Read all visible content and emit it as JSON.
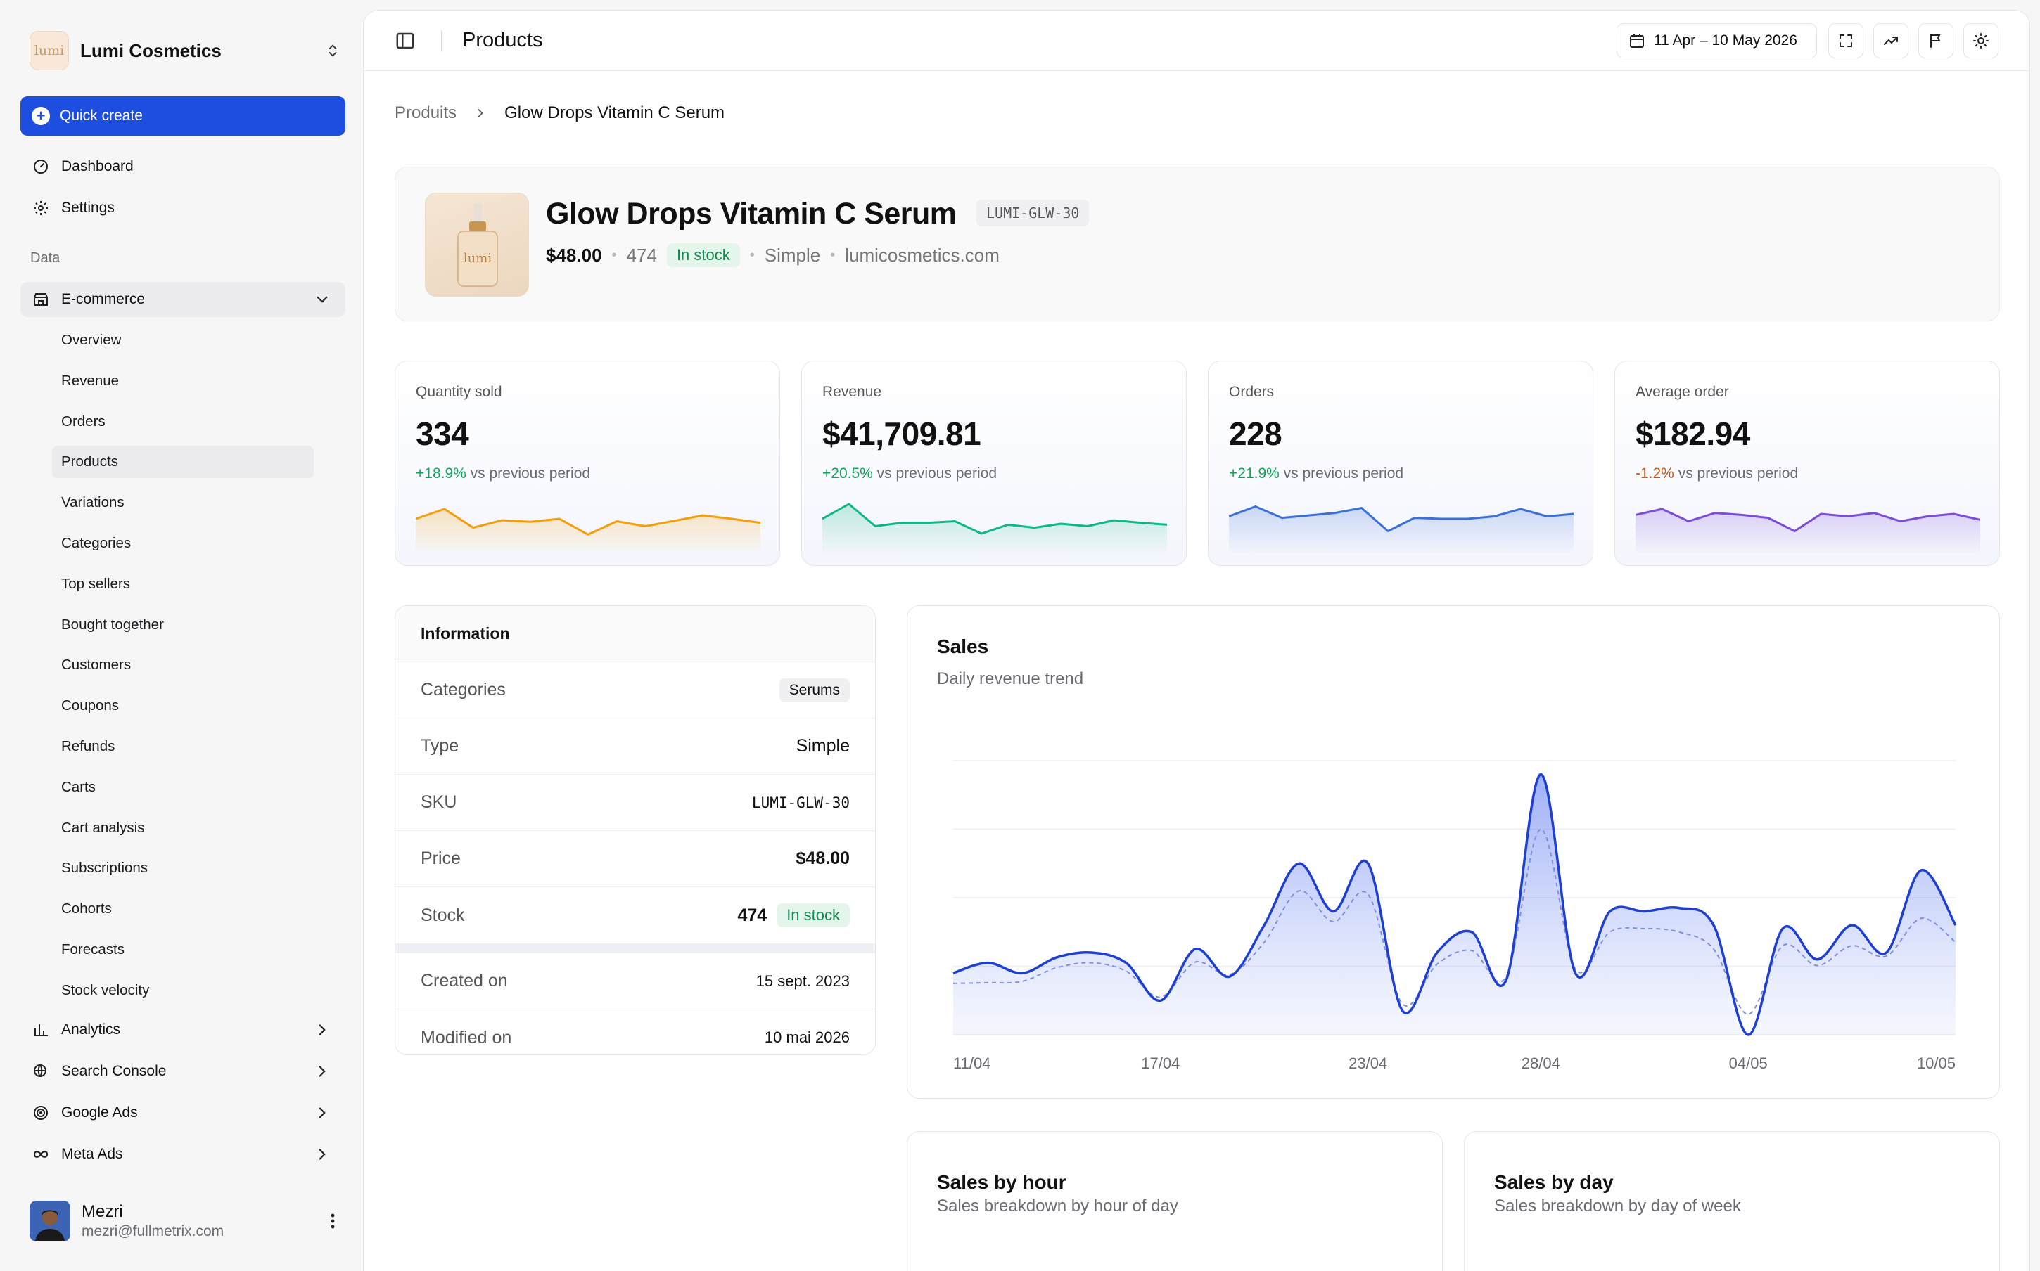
{
  "sidebar": {
    "brand_logo_text": "lumi",
    "brand_name": "Lumi Cosmetics",
    "quick_create": "Quick create",
    "top_items": [
      "Dashboard",
      "Settings"
    ],
    "section_label": "Data",
    "ecommerce_label": "E-commerce",
    "ecommerce_items": [
      "Overview",
      "Revenue",
      "Orders",
      "Products",
      "Variations",
      "Categories",
      "Top sellers",
      "Bought together",
      "Customers",
      "Coupons",
      "Refunds",
      "Carts",
      "Cart analysis",
      "Subscriptions",
      "Cohorts",
      "Forecasts",
      "Stock velocity"
    ],
    "active_item": "Products",
    "bottom_items": [
      "Analytics",
      "Search Console",
      "Google Ads",
      "Meta Ads"
    ],
    "user": {
      "name": "Mezri",
      "email": "mezri@fullmetrix.com"
    }
  },
  "topbar": {
    "title": "Products",
    "date_range": "11 Apr – 10 May 2026"
  },
  "breadcrumb": {
    "parent": "Produits",
    "current": "Glow Drops Vitamin C Serum"
  },
  "product": {
    "image_text": "lumi",
    "title": "Glow Drops Vitamin C Serum",
    "sku": "LUMI-GLW-30",
    "price": "$48.00",
    "stock": "474",
    "stock_status": "In stock",
    "type": "Simple",
    "domain": "lumicosmetics.com"
  },
  "kpis": [
    {
      "label": "Quantity sold",
      "value": "334",
      "delta": "+18.9%",
      "delta_sign": "pos",
      "suffix": "vs previous period",
      "color": "#f59e0b",
      "spark": [
        40,
        20,
        58,
        43,
        46,
        40,
        72,
        45,
        55,
        44,
        33,
        40,
        48
      ]
    },
    {
      "label": "Revenue",
      "value": "$41,709.81",
      "delta": "+20.5%",
      "delta_sign": "pos",
      "suffix": "vs previous period",
      "color": "#10b981",
      "spark": [
        40,
        10,
        55,
        48,
        48,
        45,
        70,
        52,
        58,
        50,
        55,
        43,
        48,
        52
      ]
    },
    {
      "label": "Orders",
      "value": "228",
      "delta": "+21.9%",
      "delta_sign": "pos",
      "suffix": "vs previous period",
      "color": "#3b6fd9",
      "spark": [
        35,
        15,
        38,
        33,
        28,
        18,
        65,
        38,
        40,
        40,
        35,
        20,
        35,
        30
      ]
    },
    {
      "label": "Average order",
      "value": "$182.94",
      "delta": "-1.2%",
      "delta_sign": "neg",
      "suffix": "vs previous period",
      "color": "#7c4ddb",
      "spark": [
        32,
        20,
        45,
        28,
        32,
        38,
        65,
        30,
        35,
        28,
        45,
        35,
        30,
        42
      ]
    }
  ],
  "info": {
    "title": "Information",
    "rows": [
      {
        "key": "Categories",
        "value": "Serums"
      },
      {
        "key": "Type",
        "value": "Simple"
      },
      {
        "key": "SKU",
        "value": "LUMI-GLW-30"
      },
      {
        "key": "Price",
        "value": "$48.00"
      },
      {
        "key": "Stock",
        "value": "474",
        "badge": "In stock"
      },
      {
        "key": "Created on",
        "value": "15 sept. 2023"
      },
      {
        "key": "Modified on",
        "value": "10 mai 2026"
      }
    ]
  },
  "sales": {
    "title": "Sales",
    "subtitle": "Daily revenue trend"
  },
  "chart_data": {
    "type": "area",
    "title": "Sales",
    "subtitle": "Daily revenue trend",
    "x": [
      "11/04",
      "12/04",
      "13/04",
      "14/04",
      "15/04",
      "16/04",
      "17/04",
      "18/04",
      "19/04",
      "20/04",
      "21/04",
      "22/04",
      "23/04",
      "24/04",
      "25/04",
      "26/04",
      "27/04",
      "28/04",
      "29/04",
      "30/04",
      "01/05",
      "02/05",
      "03/05",
      "04/05",
      "05/05",
      "06/05",
      "07/05",
      "08/05",
      "09/05",
      "10/05"
    ],
    "x_ticks": [
      "11/04",
      "17/04",
      "23/04",
      "28/04",
      "04/05",
      "10/05"
    ],
    "series": [
      {
        "values": [
          900,
          1050,
          900,
          1130,
          1200,
          1050,
          500,
          1250,
          850,
          1600,
          2500,
          1800,
          2500,
          350,
          1200,
          1500,
          800,
          3800,
          900,
          1800,
          1800,
          1850,
          1600,
          0,
          1550,
          1100,
          1600,
          1200,
          2400,
          1600
        ]
      },
      {
        "values": [
          750,
          760,
          780,
          980,
          1050,
          930,
          550,
          1060,
          880,
          1350,
          2100,
          1650,
          2050,
          450,
          1030,
          1230,
          850,
          3000,
          960,
          1500,
          1550,
          1500,
          1250,
          300,
          1300,
          1010,
          1300,
          1150,
          1700,
          1350
        ]
      }
    ],
    "ylim": [
      0,
      4000
    ],
    "grid": true
  },
  "mini_cards": [
    {
      "title": "Sales by hour",
      "subtitle": "Sales breakdown by hour of day"
    },
    {
      "title": "Sales by day",
      "subtitle": "Sales breakdown by day of week"
    }
  ],
  "colors": {
    "accent": "#1d4ee0",
    "chart_line": "#1e3fd4",
    "positive": "#16a05a",
    "negative": "#c2561b"
  }
}
